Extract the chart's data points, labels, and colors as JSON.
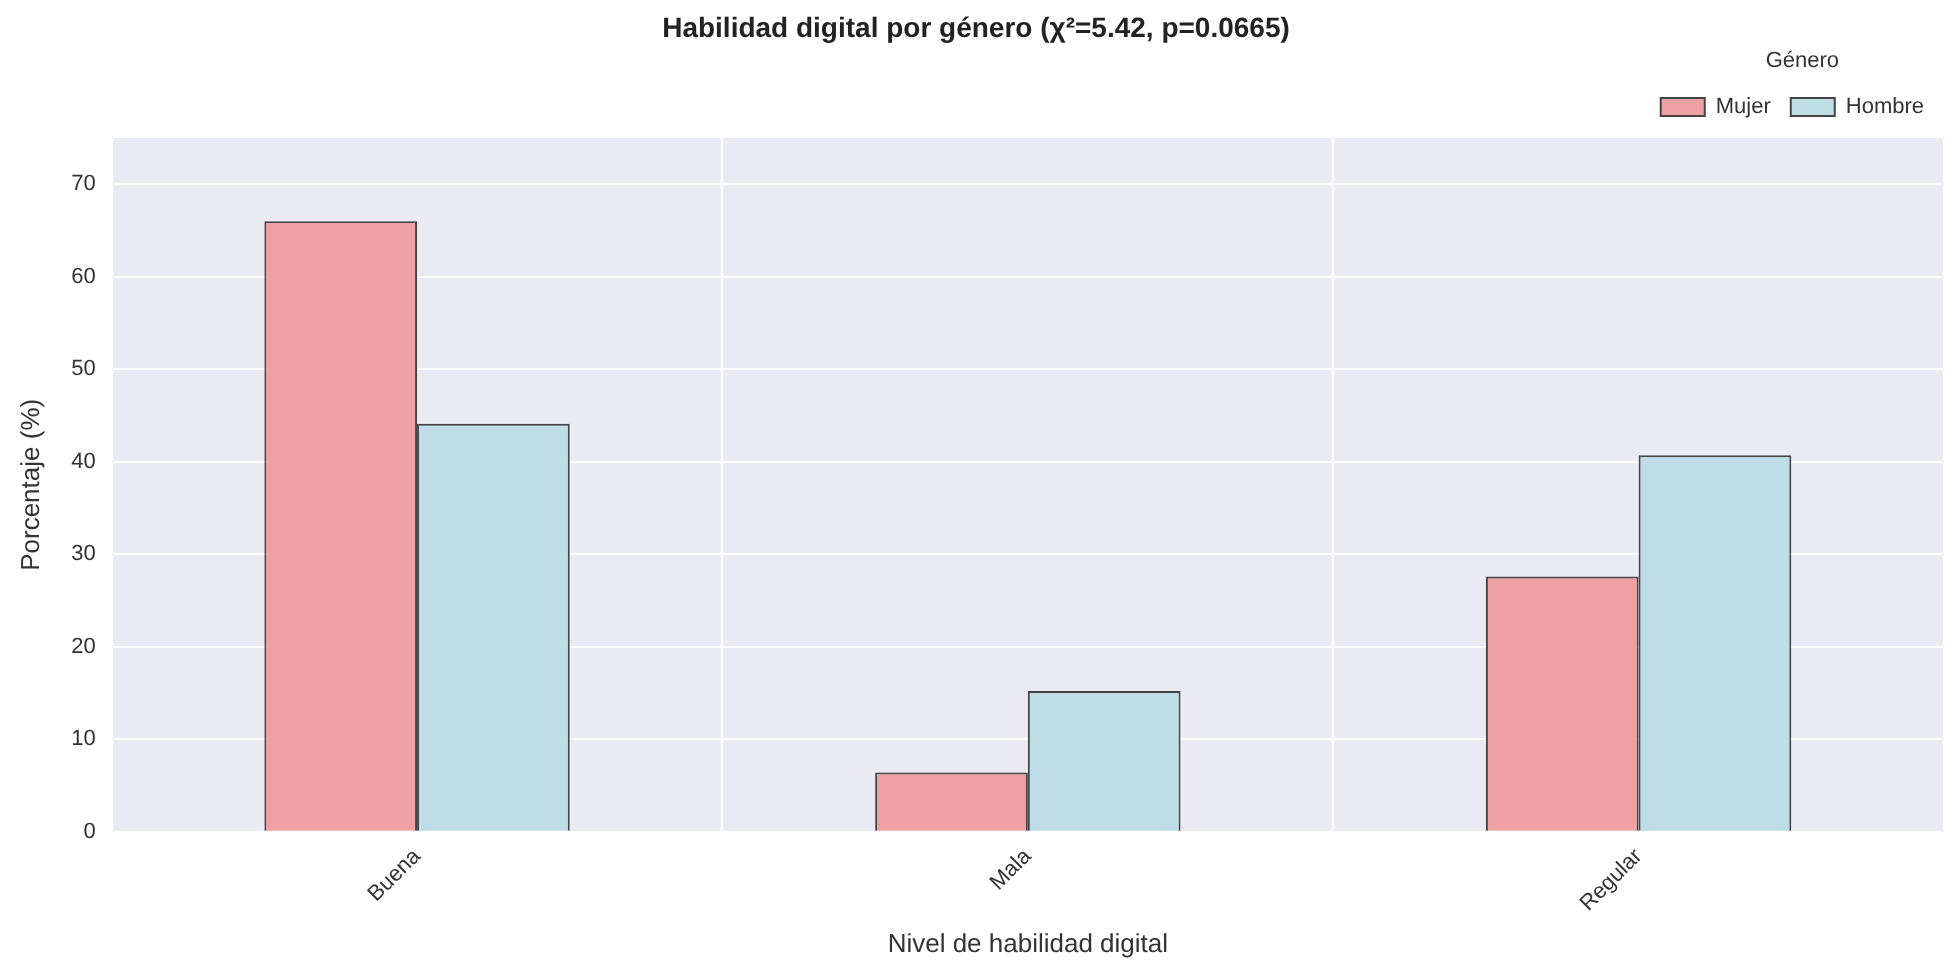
{
  "chart_data": {
    "type": "bar",
    "title": "Habilidad digital por género (χ²=5.42, p=0.0665)",
    "xlabel": "Nivel de habilidad digital",
    "ylabel": "Porcentaje (%)",
    "legend_title": "Género",
    "categories": [
      "Buena",
      "Mala",
      "Regular"
    ],
    "series": [
      {
        "name": "Mujer",
        "color": "#eea0a2",
        "values": [
          66.0,
          6.4,
          27.6
        ]
      },
      {
        "name": "Hombre",
        "color": "#bedde6",
        "values": [
          44.1,
          15.2,
          40.7
        ]
      }
    ],
    "ylim": [
      0,
      75
    ],
    "yticks": [
      0,
      10,
      20,
      30,
      40,
      50,
      60,
      70
    ],
    "grid": true,
    "legend": "top right"
  }
}
